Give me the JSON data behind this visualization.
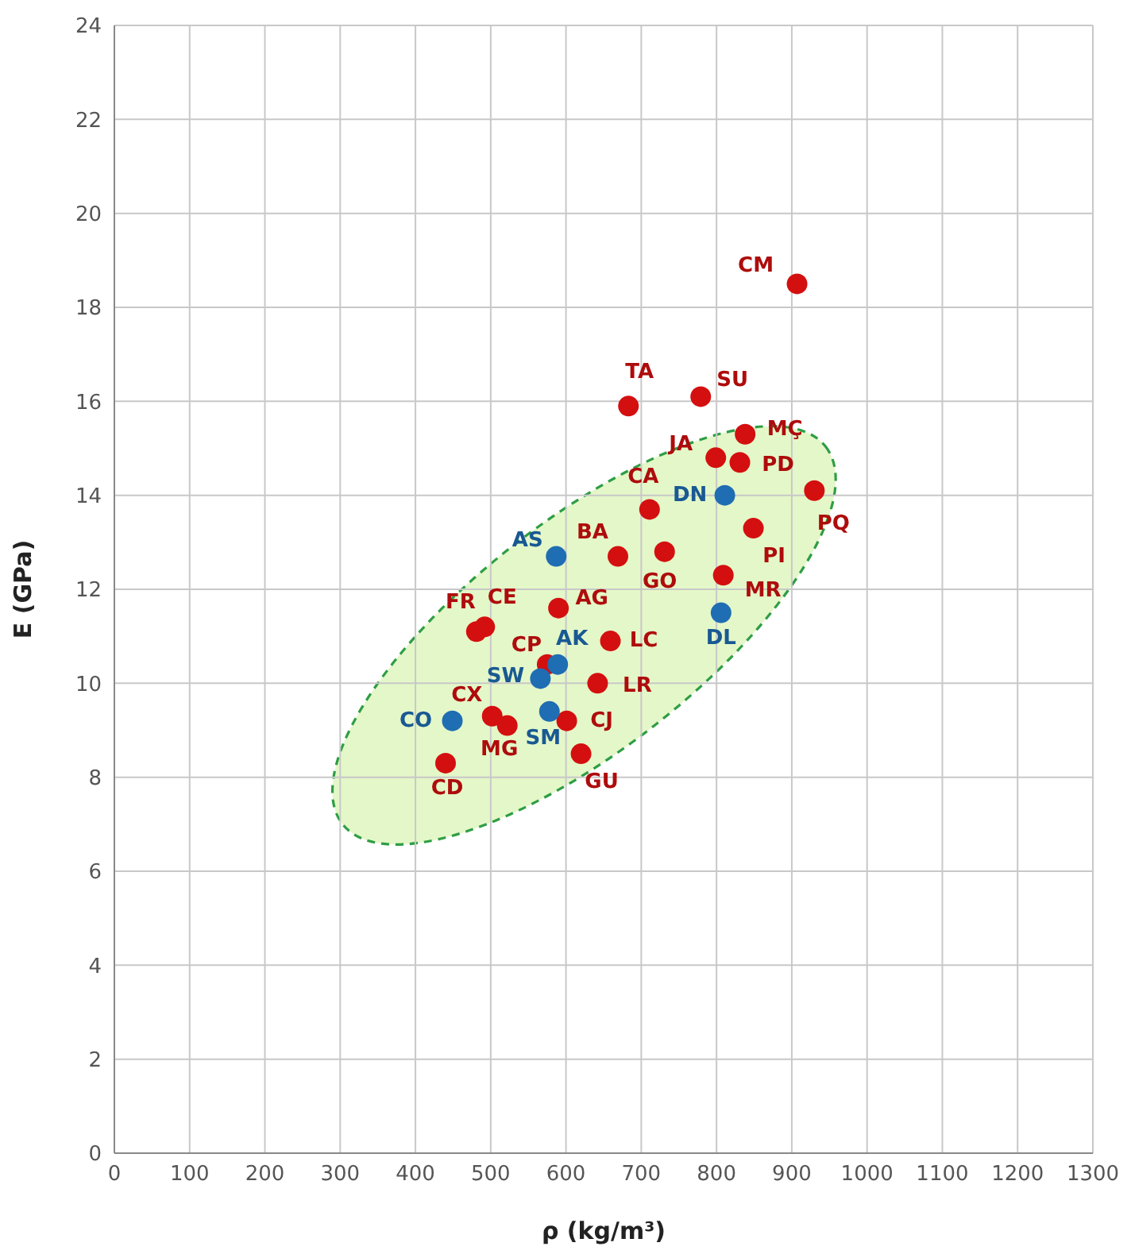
{
  "chart_data": {
    "type": "scatter",
    "xlabel": "ρ (kg/m³)",
    "ylabel": "E (GPa)",
    "xlim": [
      0,
      1300
    ],
    "xticks": [
      0,
      100,
      200,
      300,
      400,
      500,
      600,
      700,
      800,
      900,
      1000,
      1100,
      1200,
      1300
    ],
    "ylim": [
      0,
      24
    ],
    "yticks": [
      0,
      2,
      4,
      6,
      8,
      10,
      12,
      14,
      16,
      18,
      20,
      22,
      24
    ],
    "grid": true,
    "marker": "circle",
    "series": [
      {
        "color": "#d40f0f",
        "x": [
          907,
          683,
          779,
          838,
          799,
          831,
          930,
          711,
          849,
          669,
          731,
          809,
          590,
          481,
          492,
          659,
          575,
          642,
          502,
          522,
          601,
          620,
          440
        ],
        "values": [
          18.5,
          15.9,
          16.1,
          15.3,
          14.8,
          14.7,
          14.1,
          13.7,
          13.3,
          12.7,
          12.8,
          12.3,
          11.6,
          11.1,
          11.2,
          10.9,
          10.4,
          10.0,
          9.3,
          9.1,
          9.2,
          8.5,
          8.3
        ]
      },
      {
        "color": "#1f6db3",
        "x": [
          811,
          587,
          806,
          589,
          566,
          449,
          578
        ],
        "values": [
          14.0,
          12.7,
          11.5,
          10.4,
          10.1,
          9.2,
          9.4
        ]
      }
    ],
    "annotations": [
      {
        "text": "CM",
        "x": 907,
        "y": 18.5
      },
      {
        "text": "TA",
        "x": 683,
        "y": 15.9
      },
      {
        "text": "SU",
        "x": 779,
        "y": 16.1
      },
      {
        "text": "MÇ",
        "x": 838,
        "y": 15.3
      },
      {
        "text": "JA",
        "x": 799,
        "y": 14.8
      },
      {
        "text": "PD",
        "x": 831,
        "y": 14.7
      },
      {
        "text": "PQ",
        "x": 930,
        "y": 14.1
      },
      {
        "text": "CA",
        "x": 711,
        "y": 13.7
      },
      {
        "text": "PI",
        "x": 849,
        "y": 13.3
      },
      {
        "text": "BA",
        "x": 669,
        "y": 12.7
      },
      {
        "text": "GO",
        "x": 731,
        "y": 12.8
      },
      {
        "text": "MR",
        "x": 809,
        "y": 12.3
      },
      {
        "text": "AG",
        "x": 590,
        "y": 11.6
      },
      {
        "text": "FR",
        "x": 481,
        "y": 11.1
      },
      {
        "text": "CE",
        "x": 492,
        "y": 11.2
      },
      {
        "text": "LC",
        "x": 659,
        "y": 10.9
      },
      {
        "text": "CP",
        "x": 575,
        "y": 10.4
      },
      {
        "text": "LR",
        "x": 642,
        "y": 10.0
      },
      {
        "text": "CX",
        "x": 502,
        "y": 9.3
      },
      {
        "text": "MG",
        "x": 522,
        "y": 9.1
      },
      {
        "text": "CJ",
        "x": 601,
        "y": 9.2
      },
      {
        "text": "GU",
        "x": 620,
        "y": 8.5
      },
      {
        "text": "CD",
        "x": 440,
        "y": 8.3
      },
      {
        "text": "DN",
        "x": 811,
        "y": 14.0
      },
      {
        "text": "AS",
        "x": 587,
        "y": 12.7
      },
      {
        "text": "DL",
        "x": 806,
        "y": 11.5
      },
      {
        "text": "AK",
        "x": 589,
        "y": 10.4
      },
      {
        "text": "SW",
        "x": 566,
        "y": 10.1
      },
      {
        "text": "CO",
        "x": 449,
        "y": 9.2
      },
      {
        "text": "SM",
        "x": 578,
        "y": 9.4
      }
    ]
  }
}
